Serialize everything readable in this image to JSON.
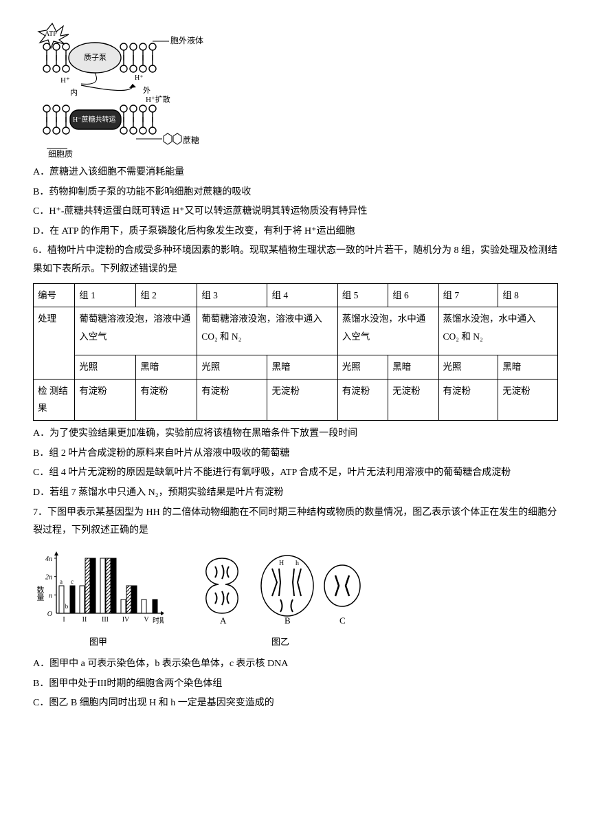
{
  "diagram1": {
    "labels": {
      "atp": "ATP",
      "pump": "质子泵",
      "extracellular": "胞外液体",
      "h_plus": "H⁺",
      "inside": "内",
      "outside": "外",
      "diffusion": "H⁺扩散",
      "cotransporter": "H⁻蔗糖共转运",
      "cytoplasm": "细胞质",
      "sucrose": "蔗糖"
    },
    "colors": {
      "stroke": "#000000",
      "fill": "#ffffff"
    }
  },
  "q5_options": {
    "A": "A．蔗糖进入该细胞不需要消耗能量",
    "B": "B．药物抑制质子泵的功能不影响细胞对蔗糖的吸收",
    "C": "C．H⁺-蔗糖共转运蛋白既可转运 H⁺又可以转运蔗糖说明其转运物质没有特异性",
    "D": "D．在 ATP 的作用下，质子泵磷酸化后构象发生改变，有利于将 H⁺运出细胞"
  },
  "q6": {
    "stem": "6．植物叶片中淀粉的合成受多种环境因素的影响。现取某植物生理状态一致的叶片若干，随机分为 8 组，实验处理及检测结果如下表所示。下列叙述错误的是",
    "table": {
      "headers": [
        "编号",
        "组 1",
        "组 2",
        "组 3",
        "组 4",
        "组 5",
        "组 6",
        "组 7",
        "组 8"
      ],
      "row_treat_label": "处理",
      "treats": [
        "葡萄糖溶液没泡，溶液中通入空气",
        "葡萄糖溶液没泡，溶液中通入 CO₂ 和 N₂",
        "蒸馏水没泡，水中通入空气",
        "蒸馏水没泡，水中通入 CO₂ 和 N₂"
      ],
      "light_row": [
        "光照",
        "黑暗",
        "光照",
        "黑暗",
        "光照",
        "黑暗",
        "光照",
        "黑暗"
      ],
      "result_label": "检 测结果",
      "results": [
        "有淀粉",
        "有淀粉",
        "有淀粉",
        "无淀粉",
        "有淀粉",
        "无淀粉",
        "有淀粉",
        "无淀粉"
      ]
    },
    "options": {
      "A": "A．为了使实验结果更加准确，实验前应将该植物在黑暗条件下放置一段时间",
      "B": "B．组 2 叶片合成淀粉的原料来自叶片从溶液中吸收的葡萄糖",
      "C": "C．组 4 叶片无淀粉的原因是缺氧叶片不能进行有氧呼吸，ATP 合成不足，叶片无法利用溶液中的葡萄糖合成淀粉",
      "D": "D．若组 7 蒸馏水中只通入 N₂，预期实验结果是叶片有淀粉"
    }
  },
  "q7": {
    "stem": "7．下图甲表示某基因型为 HH 的二倍体动物细胞在不同时期三种结构或物质的数量情况，图乙表示该个体正在发生的细胞分裂过程，下列叙述正确的是",
    "chart_jia": {
      "type": "bar",
      "ylabel": "数量",
      "xlabel": "时期",
      "caption": "图甲",
      "yticks": [
        "O",
        "n",
        "2n",
        "4n"
      ],
      "categories": [
        "I",
        "II",
        "III",
        "IV",
        "V"
      ],
      "series": [
        "a",
        "b",
        "c"
      ],
      "values": {
        "I": [
          2,
          0,
          2
        ],
        "II": [
          2,
          4,
          4
        ],
        "III": [
          4,
          4,
          4
        ],
        "IV": [
          1,
          2,
          2
        ],
        "V": [
          1,
          0,
          1
        ]
      },
      "colors": {
        "a": "#ffffff",
        "b": "pattern-diag",
        "c": "#000000"
      },
      "bar_stroke": "#000000"
    },
    "chart_yi": {
      "caption": "图乙",
      "cells": [
        "A",
        "B",
        "C"
      ],
      "labels_in_B": [
        "H",
        "h"
      ]
    },
    "options": {
      "A": "A．图甲中 a 可表示染色体，b 表示染色单体，c 表示核 DNA",
      "B": "B．图甲中处于III时期的细胞含两个染色体组",
      "C": "C．图乙 B 细胞内同时出现 H 和 h 一定是基因突变造成的"
    }
  }
}
